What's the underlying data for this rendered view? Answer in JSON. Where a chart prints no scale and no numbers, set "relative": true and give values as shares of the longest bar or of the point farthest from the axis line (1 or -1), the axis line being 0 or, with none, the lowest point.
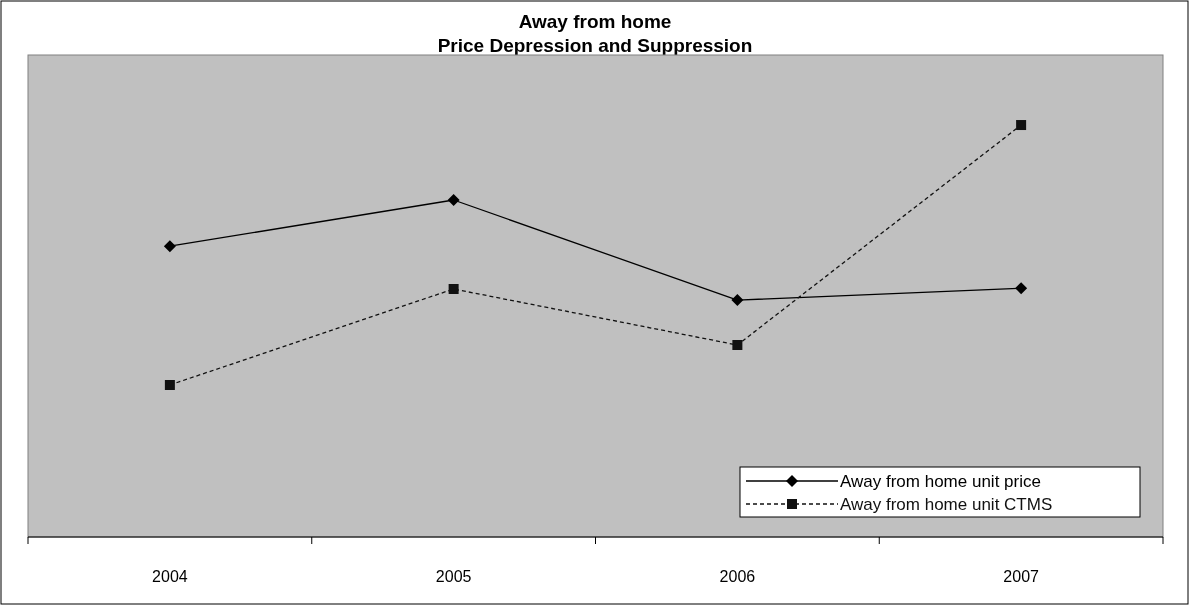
{
  "chart_data": {
    "type": "line",
    "title": "Away from home",
    "subtitle": "Price Depression and Suppression",
    "relative": true,
    "categories": [
      "2004",
      "2005",
      "2006",
      "2007"
    ],
    "series": [
      {
        "name": "Away from home unit price",
        "color": "#000000",
        "values": [
          0.706,
          0.818,
          0.575,
          0.604
        ],
        "marker": "diamond",
        "line_style": "solid"
      },
      {
        "name": "Away from home unit CTMS",
        "color": "#111111",
        "values": [
          0.369,
          0.602,
          0.466,
          1
        ],
        "marker": "square",
        "line_style": "dashed"
      }
    ],
    "legend": "bottom right"
  }
}
